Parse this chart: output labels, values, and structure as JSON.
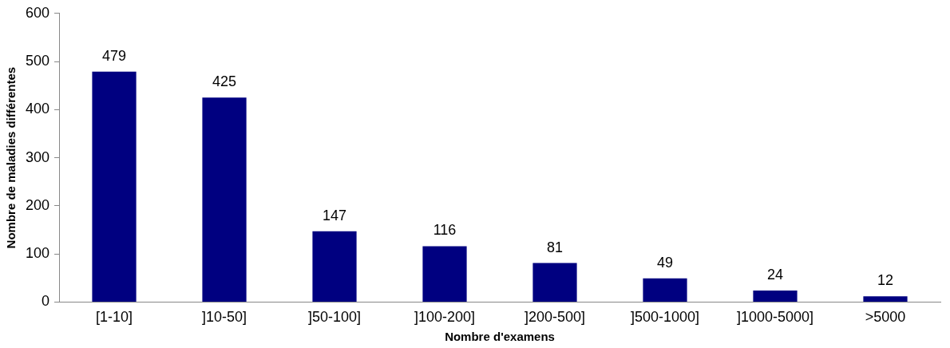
{
  "chart_data": {
    "type": "bar",
    "xlabel": "Nombre d'examens",
    "ylabel": "Nombre de maladies différentes",
    "categories": [
      "[1-10]",
      "]10-50]",
      "]50-100]",
      "]100-200]",
      "]200-500]",
      "]500-1000]",
      "]1000-5000]",
      ">5000"
    ],
    "values": [
      479,
      425,
      147,
      116,
      81,
      49,
      24,
      12
    ],
    "color": "#000080",
    "ylim": [
      0,
      600
    ],
    "yticks": [
      0,
      100,
      200,
      300,
      400,
      500,
      600
    ],
    "grid": false,
    "legend": false,
    "data_labels": true
  }
}
